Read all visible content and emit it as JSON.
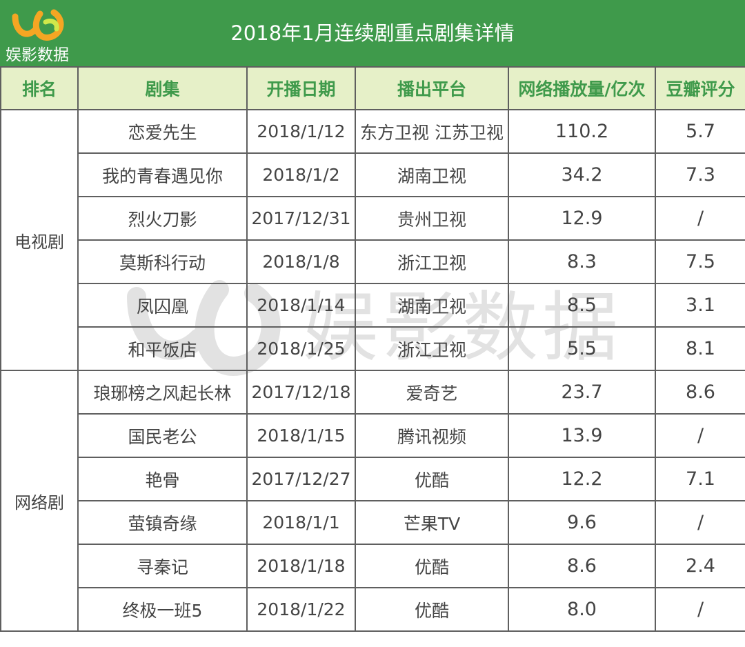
{
  "header": {
    "logo_text": "娱影数据",
    "title": "2018年1月连续剧重点剧集详情"
  },
  "colors": {
    "title_bg": "#3f9a4b",
    "header_bg": "#e6f0c8",
    "header_text": "#3f9a4b"
  },
  "watermark": {
    "text": "娱影数据"
  },
  "table": {
    "headers": [
      "排名",
      "剧集",
      "开播日期",
      "播出平台",
      "网络播放量/亿次",
      "豆瓣评分"
    ],
    "groups": [
      {
        "category": "电视剧",
        "rows": [
          {
            "title": "恋爱先生",
            "date": "2018/1/12",
            "platform": "东方卫视 江苏卫视",
            "views": "110.2",
            "score": "5.7"
          },
          {
            "title": "我的青春遇见你",
            "date": "2018/1/2",
            "platform": "湖南卫视",
            "views": "34.2",
            "score": "7.3"
          },
          {
            "title": "烈火刀影",
            "date": "2017/12/31",
            "platform": "贵州卫视",
            "views": "12.9",
            "score": "/"
          },
          {
            "title": "莫斯科行动",
            "date": "2018/1/8",
            "platform": "浙江卫视",
            "views": "8.3",
            "score": "7.5"
          },
          {
            "title": "凤囚凰",
            "date": "2018/1/14",
            "platform": "湖南卫视",
            "views": "8.5",
            "score": "3.1"
          },
          {
            "title": "和平饭店",
            "date": "2018/1/25",
            "platform": "浙江卫视",
            "views": "5.5",
            "score": "8.1"
          }
        ]
      },
      {
        "category": "网络剧",
        "rows": [
          {
            "title": "琅琊榜之风起长林",
            "date": "2017/12/18",
            "platform": "爱奇艺",
            "views": "23.7",
            "score": "8.6"
          },
          {
            "title": "国民老公",
            "date": "2018/1/15",
            "platform": "腾讯视频",
            "views": "13.9",
            "score": "/"
          },
          {
            "title": "艳骨",
            "date": "2017/12/27",
            "platform": "优酷",
            "views": "12.2",
            "score": "7.1"
          },
          {
            "title": "萤镇奇缘",
            "date": "2018/1/1",
            "platform": "芒果TV",
            "views": "9.6",
            "score": "/"
          },
          {
            "title": "寻秦记",
            "date": "2018/1/18",
            "platform": "优酷",
            "views": "8.6",
            "score": "2.4"
          },
          {
            "title": "终极一班5",
            "date": "2018/1/22",
            "platform": "优酷",
            "views": "8.0",
            "score": "/"
          }
        ]
      }
    ]
  }
}
